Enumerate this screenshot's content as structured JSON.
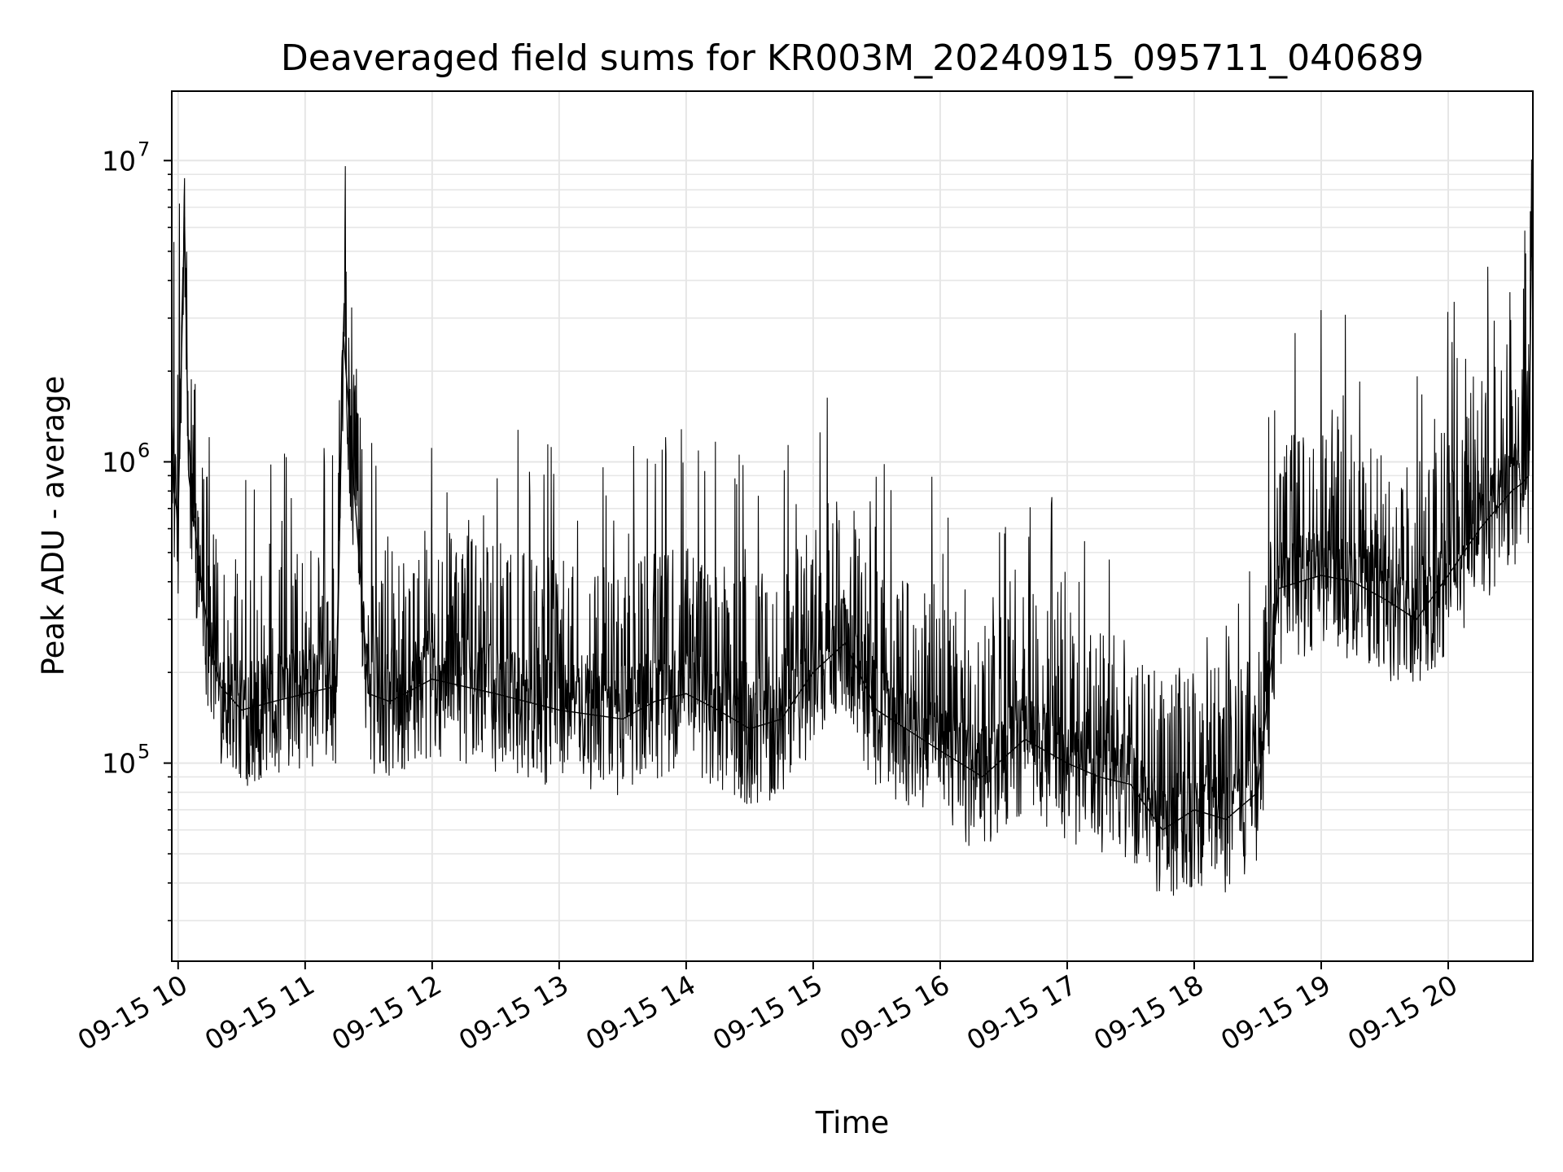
{
  "chart_data": {
    "type": "line",
    "title": "Deaveraged field sums for KR003M_20240915_095711_040689",
    "xlabel": "Time",
    "ylabel": "Peak ADU - average",
    "y_scale": "log",
    "ylim": [
      22000,
      17000000
    ],
    "xlim": [
      "2024-09-15 09:57",
      "2024-09-15 20:40"
    ],
    "grid": true,
    "legend": "none",
    "line_color": "#000000",
    "x_ticks": [
      "09-15 10",
      "09-15 11",
      "09-15 12",
      "09-15 13",
      "09-15 14",
      "09-15 15",
      "09-15 16",
      "09-15 17",
      "09-15 18",
      "09-15 19",
      "09-15 20"
    ],
    "y_ticks": [
      {
        "base": "10",
        "exp": "5",
        "value": 100000
      },
      {
        "base": "10",
        "exp": "6",
        "value": 1000000
      },
      {
        "base": "10",
        "exp": "7",
        "value": 10000000
      }
    ],
    "series": [
      {
        "x": [
          "2024-09-15 09:57",
          "2024-09-15 09:58",
          "2024-09-15 10:00",
          "2024-09-15 10:03",
          "2024-09-15 10:05",
          "2024-09-15 10:07",
          "2024-09-15 10:10",
          "2024-09-15 10:15",
          "2024-09-15 10:20",
          "2024-09-15 10:30",
          "2024-09-15 10:45",
          "2024-09-15 11:00",
          "2024-09-15 11:15",
          "2024-09-15 11:18",
          "2024-09-15 11:30",
          "2024-09-15 11:40",
          "2024-09-15 12:00",
          "2024-09-15 12:30",
          "2024-09-15 13:00",
          "2024-09-15 13:30",
          "2024-09-15 13:45",
          "2024-09-15 14:00",
          "2024-09-15 14:15",
          "2024-09-15 14:30",
          "2024-09-15 14:45",
          "2024-09-15 15:00",
          "2024-09-15 15:15",
          "2024-09-15 15:30",
          "2024-09-15 16:00",
          "2024-09-15 16:20",
          "2024-09-15 16:40",
          "2024-09-15 17:00",
          "2024-09-15 17:15",
          "2024-09-15 17:30",
          "2024-09-15 17:45",
          "2024-09-15 18:00",
          "2024-09-15 18:15",
          "2024-09-15 18:30",
          "2024-09-15 18:40",
          "2024-09-15 18:50",
          "2024-09-15 19:00",
          "2024-09-15 19:15",
          "2024-09-15 19:30",
          "2024-09-15 19:45",
          "2024-09-15 20:00",
          "2024-09-15 20:15",
          "2024-09-15 20:30",
          "2024-09-15 20:35",
          "2024-09-15 20:38",
          "2024-09-15 20:40"
        ],
        "y": [
          1400000,
          800000,
          650000,
          6500000,
          900000,
          700000,
          450000,
          250000,
          180000,
          150000,
          160000,
          170000,
          180000,
          2700000,
          170000,
          160000,
          190000,
          170000,
          150000,
          140000,
          160000,
          170000,
          150000,
          130000,
          140000,
          200000,
          250000,
          150000,
          110000,
          90000,
          120000,
          100000,
          90000,
          85000,
          60000,
          70000,
          65000,
          80000,
          380000,
          400000,
          420000,
          400000,
          350000,
          300000,
          420000,
          600000,
          800000,
          850000,
          900000,
          11500000
        ]
      }
    ]
  }
}
